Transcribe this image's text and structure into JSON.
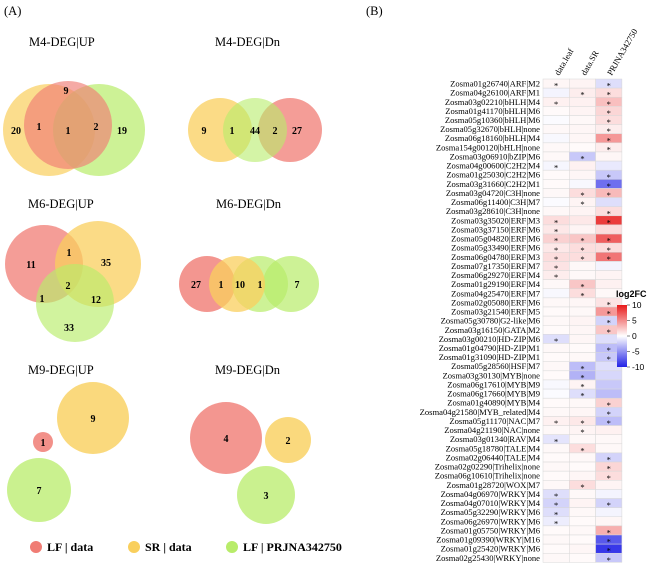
{
  "panels": {
    "a": "(A)",
    "b": "(B)"
  },
  "colors": {
    "lf": "#f07c74",
    "sr": "#f9cf5d",
    "pr": "#b8ec6a",
    "low": "#2222e6",
    "mid": "#ffffff",
    "high": "#e8191a"
  },
  "venn": [
    {
      "title": "M4-DEG|UP",
      "lf": 9,
      "sr": 20,
      "pr": 19,
      "lf_sr": 1,
      "lf_pr": 2,
      "all": 1
    },
    {
      "title": "M4-DEG|Dn",
      "sr": 9,
      "sr_pr": 1,
      "mid": 44,
      "lf_pr": 2,
      "lf": 27
    },
    {
      "title": "M6-DEG|UP",
      "lf": 11,
      "lf_sr": 1,
      "sr": 35,
      "all": 2,
      "lf_pr": 1,
      "sr_pr": 12,
      "pr": 33
    },
    {
      "title": "M6-DEG|Dn",
      "lf": 27,
      "lf_sr": 1,
      "sr": 10,
      "sr_pr": 1,
      "pr": 7
    },
    {
      "title": "M9-DEG|UP",
      "lf": 1,
      "sr": 9,
      "pr": 7
    },
    {
      "title": "M9-DEG|Dn",
      "lf": 4,
      "sr": 2,
      "pr": 3
    }
  ],
  "legend": [
    {
      "label": "LF | data",
      "color": "#f07c74"
    },
    {
      "label": "SR | data",
      "color": "#f9cf5d"
    },
    {
      "label": "LF | PRJNA342750",
      "color": "#b8ec6a"
    }
  ],
  "chart_data": {
    "type": "heatmap",
    "columns": [
      "data.leaf",
      "data.SR",
      "PRJNA342750"
    ],
    "legend_title": "log2FC",
    "scale_ticks": [
      10,
      5,
      0,
      -5,
      -10
    ],
    "range": [
      -10,
      10
    ],
    "rows": [
      {
        "label": "Zosma01g26740|ARF|M2",
        "values": [
          0.4,
          0.5,
          -1.5
        ],
        "stars": [
          true,
          false,
          true
        ]
      },
      {
        "label": "Zosma04g26100|ARF|M1",
        "values": [
          -0.5,
          0.8,
          1.5
        ],
        "stars": [
          false,
          true,
          true
        ]
      },
      {
        "label": "Zosma03g02210|bHLH|M4",
        "values": [
          0.6,
          0.6,
          2.8
        ],
        "stars": [
          true,
          false,
          true
        ]
      },
      {
        "label": "Zosma01g41170|bHLH|M6",
        "values": [
          0.2,
          0.5,
          1.8
        ],
        "stars": [
          false,
          false,
          true
        ]
      },
      {
        "label": "Zosma05g10360|bHLH|M6",
        "values": [
          -0.2,
          0.3,
          1.5
        ],
        "stars": [
          false,
          false,
          true
        ]
      },
      {
        "label": "Zosma05g32670|bHLH|none",
        "values": [
          0.3,
          0.4,
          0.8
        ],
        "stars": [
          false,
          false,
          true
        ]
      },
      {
        "label": "Zosma06g18160|bHLH|M4",
        "values": [
          -0.3,
          0.4,
          4.5
        ],
        "stars": [
          false,
          false,
          true
        ]
      },
      {
        "label": "Zosma154g00120|bHLH|none",
        "values": [
          0.3,
          0.2,
          0.8
        ],
        "stars": [
          false,
          false,
          true
        ]
      },
      {
        "label": "Zosma03g06910|bZIP|M6",
        "values": [
          0.3,
          -2.5,
          0.4
        ],
        "stars": [
          false,
          true,
          false
        ]
      },
      {
        "label": "Zosma04g00600|C2H2|M4",
        "values": [
          -0.4,
          0.6,
          -1.0
        ],
        "stars": [
          true,
          false,
          false
        ]
      },
      {
        "label": "Zosma01g25030|C2H2|M6",
        "values": [
          0.2,
          0.4,
          -2.5
        ],
        "stars": [
          false,
          false,
          true
        ]
      },
      {
        "label": "Zosma03g31660|C2H2|M1",
        "values": [
          0.2,
          -0.3,
          -6.5
        ],
        "stars": [
          false,
          false,
          true
        ]
      },
      {
        "label": "Zosma03g04720|C3H|none",
        "values": [
          0.3,
          1.5,
          3.0
        ],
        "stars": [
          false,
          true,
          true
        ]
      },
      {
        "label": "Zosma06g11400|C3H|M7",
        "values": [
          -0.2,
          0.5,
          -1.5
        ],
        "stars": [
          false,
          true,
          false
        ]
      },
      {
        "label": "Zosma03g28610|C3H|none",
        "values": [
          0.3,
          0.5,
          1.5
        ],
        "stars": [
          false,
          false,
          true
        ]
      },
      {
        "label": "Zosma03g35020|ERF|M3",
        "values": [
          1.5,
          1.0,
          8.5
        ],
        "stars": [
          true,
          false,
          true
        ]
      },
      {
        "label": "Zosma03g37150|ERF|M6",
        "values": [
          1.0,
          0.5,
          1.5
        ],
        "stars": [
          true,
          false,
          false
        ]
      },
      {
        "label": "Zosma05g04820|ERF|M6",
        "values": [
          2.0,
          2.5,
          7.0
        ],
        "stars": [
          true,
          true,
          true
        ]
      },
      {
        "label": "Zosma05g33490|ERF|M6",
        "values": [
          1.0,
          1.5,
          1.5
        ],
        "stars": [
          true,
          true,
          true
        ]
      },
      {
        "label": "Zosma06g04780|ERF|M3",
        "values": [
          1.5,
          1.5,
          6.0
        ],
        "stars": [
          true,
          true,
          true
        ]
      },
      {
        "label": "Zosma07g17350|ERF|M7",
        "values": [
          1.2,
          0.3,
          -0.5
        ],
        "stars": [
          true,
          false,
          false
        ]
      },
      {
        "label": "Zosma06g29270|ERF|M4",
        "values": [
          0.8,
          0.3,
          0.5
        ],
        "stars": [
          true,
          false,
          false
        ]
      },
      {
        "label": "Zosma01g29190|ERF|M4",
        "values": [
          0.3,
          2.5,
          0.6
        ],
        "stars": [
          false,
          true,
          false
        ]
      },
      {
        "label": "Zosma04g25470|ERF|M7",
        "values": [
          -0.3,
          1.5,
          0.3
        ],
        "stars": [
          false,
          true,
          false
        ]
      },
      {
        "label": "Zosma02g05080|ERF|M6",
        "values": [
          0.3,
          0.4,
          1.2
        ],
        "stars": [
          false,
          false,
          true
        ]
      },
      {
        "label": "Zosma03g21540|ERF|M5",
        "values": [
          0.2,
          0.3,
          4.5
        ],
        "stars": [
          false,
          false,
          true
        ]
      },
      {
        "label": "Zosma05g30780|G2-like|M6",
        "values": [
          0.3,
          0.5,
          -2.0
        ],
        "stars": [
          false,
          false,
          true
        ]
      },
      {
        "label": "Zosma03g16150|GATA|M2",
        "values": [
          0.2,
          0.4,
          2.5
        ],
        "stars": [
          false,
          false,
          true
        ]
      },
      {
        "label": "Zosma03g00210|HD-ZIP|M6",
        "values": [
          -1.5,
          0.4,
          -1.5
        ],
        "stars": [
          true,
          false,
          false
        ]
      },
      {
        "label": "Zosma01g04790|HD-ZIP|M1",
        "values": [
          0.3,
          0.2,
          -3.0
        ],
        "stars": [
          false,
          false,
          true
        ]
      },
      {
        "label": "Zosma01g31090|HD-ZIP|M1",
        "values": [
          0.2,
          0.3,
          -2.5
        ],
        "stars": [
          false,
          false,
          true
        ]
      },
      {
        "label": "Zosma05g28560|HSF|M7",
        "values": [
          0.3,
          -3.0,
          -1.5
        ],
        "stars": [
          false,
          true,
          false
        ]
      },
      {
        "label": "Zosma03g30130|MYB|none",
        "values": [
          0.2,
          -3.5,
          -1.8
        ],
        "stars": [
          false,
          true,
          false
        ]
      },
      {
        "label": "Zosma06g17610|MYB|M9",
        "values": [
          -0.3,
          0.5,
          -2.5
        ],
        "stars": [
          false,
          true,
          false
        ]
      },
      {
        "label": "Zosma06g17660|MYB|M9",
        "values": [
          -0.2,
          -1.5,
          -3.0
        ],
        "stars": [
          false,
          true,
          false
        ]
      },
      {
        "label": "Zosma01g40890|MYB|M4",
        "values": [
          0.2,
          0.3,
          2.0
        ],
        "stars": [
          false,
          false,
          true
        ]
      },
      {
        "label": "Zosma04g21580|MYB_related|M4",
        "values": [
          0.3,
          0.4,
          -2.0
        ],
        "stars": [
          false,
          false,
          true
        ]
      },
      {
        "label": "Zosma05g11170|NAC|M7",
        "values": [
          0.6,
          1.0,
          -3.0
        ],
        "stars": [
          true,
          true,
          true
        ]
      },
      {
        "label": "Zosma04g21190|NAC|none",
        "values": [
          0.3,
          0.5,
          0.6
        ],
        "stars": [
          false,
          true,
          false
        ]
      },
      {
        "label": "Zosma03g01340|RAV|M4",
        "values": [
          -1.2,
          0.3,
          0.3
        ],
        "stars": [
          true,
          false,
          false
        ]
      },
      {
        "label": "Zosma05g18780|TALE|M4",
        "values": [
          0.3,
          1.5,
          0.3
        ],
        "stars": [
          false,
          true,
          false
        ]
      },
      {
        "label": "Zosma02g06440|TALE|M4",
        "values": [
          0.2,
          0.3,
          -2.0
        ],
        "stars": [
          false,
          false,
          true
        ]
      },
      {
        "label": "Zosma02g02290|Trihelix|none",
        "values": [
          0.3,
          0.2,
          1.8
        ],
        "stars": [
          false,
          false,
          true
        ]
      },
      {
        "label": "Zosma06g10610|Trihelix|none",
        "values": [
          0.2,
          0.4,
          1.5
        ],
        "stars": [
          false,
          false,
          true
        ]
      },
      {
        "label": "Zosma01g28720|WOX|M7",
        "values": [
          0.3,
          1.5,
          0.5
        ],
        "stars": [
          false,
          true,
          false
        ]
      },
      {
        "label": "Zosma04g06970|WRKY|M4",
        "values": [
          -1.5,
          0.3,
          -0.5
        ],
        "stars": [
          true,
          false,
          false
        ]
      },
      {
        "label": "Zosma04g07010|WRKY|M4",
        "values": [
          -2.0,
          0.5,
          -2.0
        ],
        "stars": [
          true,
          false,
          true
        ]
      },
      {
        "label": "Zosma05g32290|WRKY|M6",
        "values": [
          -1.5,
          0.3,
          -0.5
        ],
        "stars": [
          true,
          false,
          false
        ]
      },
      {
        "label": "Zosma06g26970|WRKY|M6",
        "values": [
          -0.8,
          0.2,
          0.4
        ],
        "stars": [
          true,
          false,
          false
        ]
      },
      {
        "label": "Zosma01g05750|WRKY|M6",
        "values": [
          0.2,
          0.3,
          3.5
        ],
        "stars": [
          false,
          false,
          true
        ]
      },
      {
        "label": "Zosma01g09390|WRKY|M16",
        "values": [
          0.3,
          0.2,
          -7.5
        ],
        "stars": [
          false,
          false,
          true
        ]
      },
      {
        "label": "Zosma01g25420|WRKY|M6",
        "values": [
          0.2,
          0.4,
          -9.0
        ],
        "stars": [
          false,
          false,
          true
        ]
      },
      {
        "label": "Zosma02g25430|WRKY|none",
        "values": [
          0.3,
          0.2,
          -2.5
        ],
        "stars": [
          false,
          false,
          true
        ]
      }
    ]
  }
}
